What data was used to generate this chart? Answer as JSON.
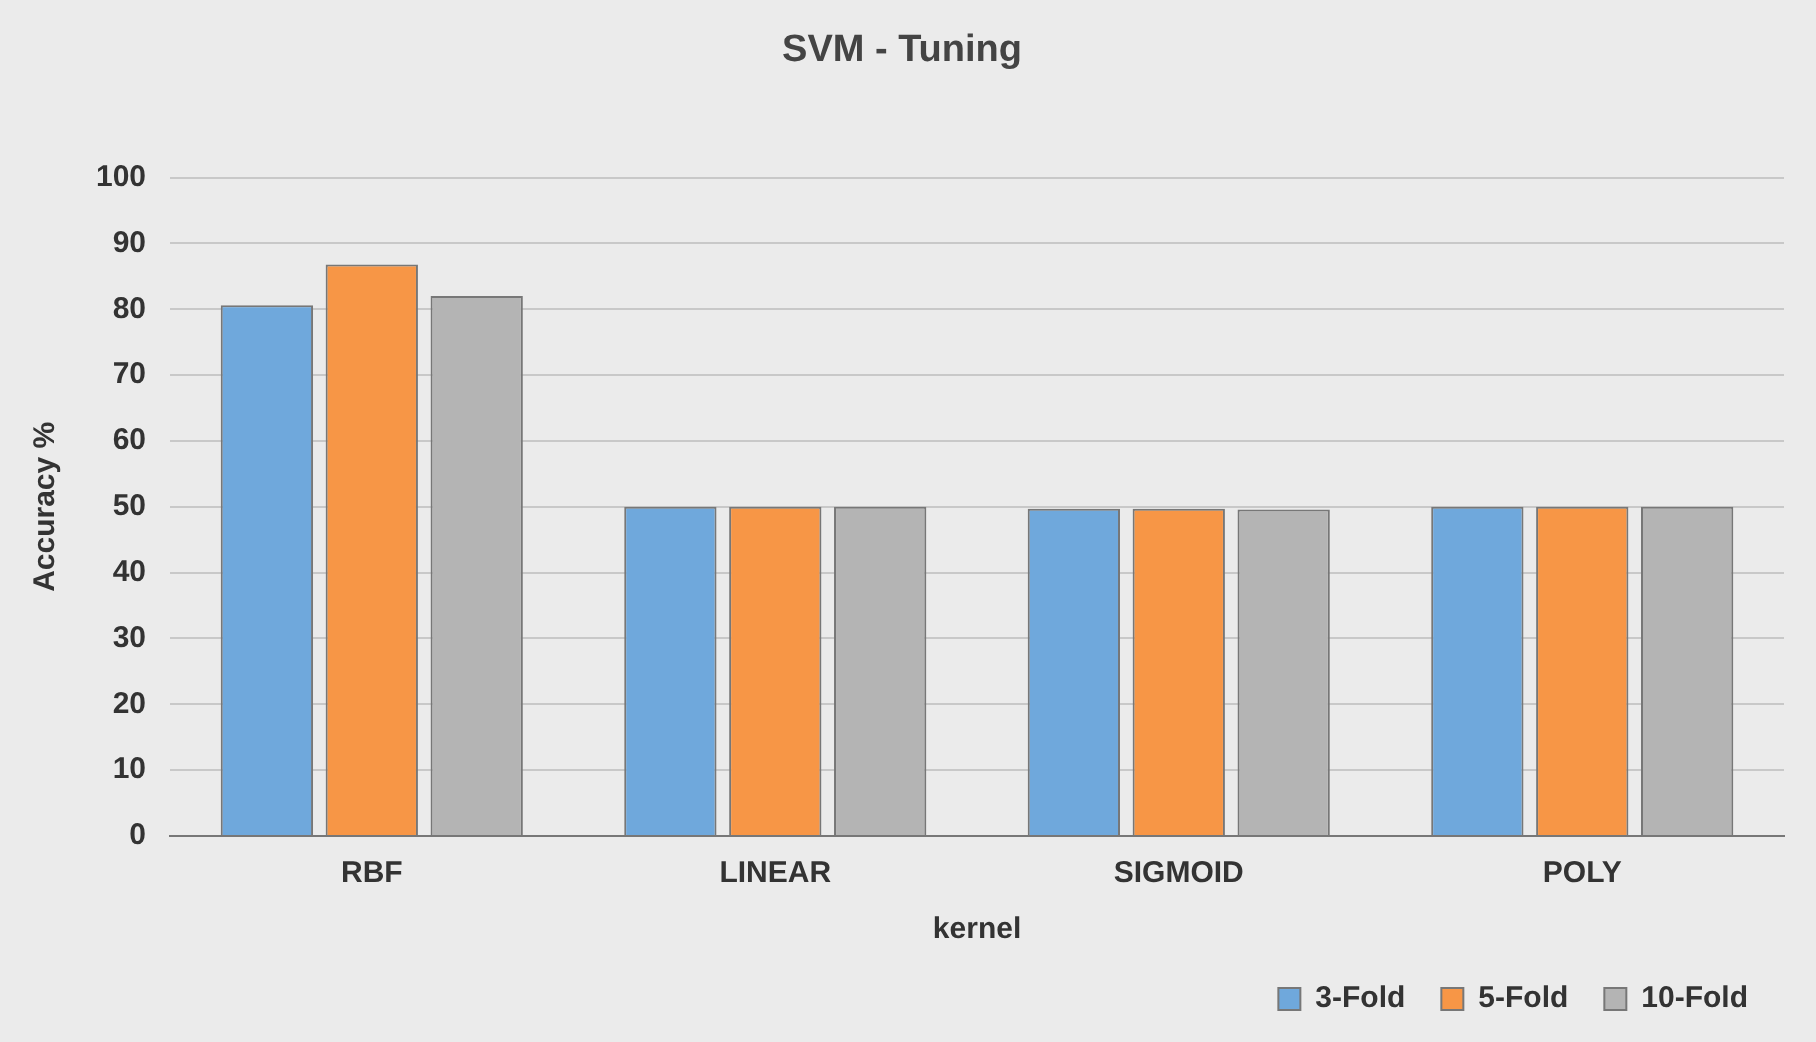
{
  "chart_data": {
    "type": "bar",
    "title": "SVM - Tuning",
    "xlabel": "kernel",
    "ylabel": "Accuracy %",
    "categories": [
      "RBF",
      "LINEAR",
      "SIGMOID",
      "POLY"
    ],
    "series": [
      {
        "name": "3-Fold",
        "color": "#6fa8dc",
        "values": [
          80.6,
          50,
          49.7,
          50
        ]
      },
      {
        "name": "5-Fold",
        "color": "#f79646",
        "values": [
          86.8,
          50,
          49.7,
          50
        ]
      },
      {
        "name": "10-Fold",
        "color": "#b4b4b4",
        "values": [
          82,
          50,
          49.6,
          50
        ]
      }
    ],
    "ylim": [
      0,
      100
    ],
    "yticks": [
      0,
      10,
      20,
      30,
      40,
      50,
      60,
      70,
      80,
      90,
      100
    ],
    "grid": "y",
    "legend": "bottom right"
  }
}
